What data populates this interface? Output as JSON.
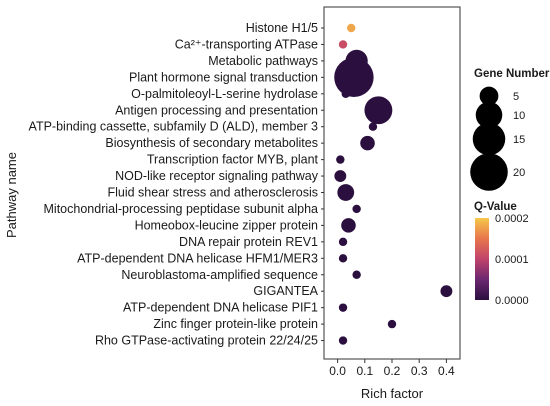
{
  "chart_data": {
    "type": "scatter",
    "xlabel": "Rich factor",
    "ylabel": "Pathway name",
    "xlim": [
      -0.05,
      0.45
    ],
    "x_ticks": [
      "0.0",
      "0.1",
      "0.2",
      "0.3",
      "0.4"
    ],
    "x_tick_values": [
      0.0,
      0.1,
      0.2,
      0.3,
      0.4
    ],
    "grid": false,
    "categories": [
      "Histone H1/5",
      "Ca²⁺-transporting ATPase",
      "Metabolic pathways",
      "Plant hormone signal transduction",
      "O-palmitoleoyl-L-serine hydrolase",
      "Antigen processing and presentation",
      "ATP-binding cassette, subfamily D (ALD), member 3",
      "Biosynthesis of secondary metabolites",
      "Transcription factor MYB, plant",
      "NOD-like receptor signaling pathway",
      "Fluid shear stress and atherosclerosis",
      "Mitochondrial-processing peptidase subunit alpha",
      "Homeobox-leucine zipper protein",
      "DNA repair protein REV1",
      "ATP-dependent DNA helicase HFM1/MER3",
      "Neuroblastoma-amplified sequence",
      "GIGANTEA",
      "ATP-dependent DNA helicase PIF1",
      "Zinc finger protein-like protein",
      "Rho GTPase-activating protein 22/24/25"
    ],
    "points": [
      {
        "x": 0.05,
        "gene_number": 1,
        "q_value": 0.00018
      },
      {
        "x": 0.02,
        "gene_number": 1,
        "q_value": 0.00011
      },
      {
        "x": 0.07,
        "gene_number": 7,
        "q_value": 0.0
      },
      {
        "x": 0.06,
        "gene_number": 22,
        "q_value": 0.0
      },
      {
        "x": 0.03,
        "gene_number": 1,
        "q_value": 0.0
      },
      {
        "x": 0.15,
        "gene_number": 11,
        "q_value": 0.0
      },
      {
        "x": 0.13,
        "gene_number": 1,
        "q_value": 0.0
      },
      {
        "x": 0.11,
        "gene_number": 3,
        "q_value": 0.0
      },
      {
        "x": 0.01,
        "gene_number": 1,
        "q_value": 0.0
      },
      {
        "x": 0.01,
        "gene_number": 2,
        "q_value": 0.0
      },
      {
        "x": 0.03,
        "gene_number": 4,
        "q_value": 0.0
      },
      {
        "x": 0.07,
        "gene_number": 1,
        "q_value": 0.0
      },
      {
        "x": 0.04,
        "gene_number": 3,
        "q_value": 0.0
      },
      {
        "x": 0.02,
        "gene_number": 1,
        "q_value": 0.0
      },
      {
        "x": 0.02,
        "gene_number": 1,
        "q_value": 0.0
      },
      {
        "x": 0.07,
        "gene_number": 1,
        "q_value": 0.0
      },
      {
        "x": 0.4,
        "gene_number": 2,
        "q_value": 0.0
      },
      {
        "x": 0.02,
        "gene_number": 1,
        "q_value": 0.0
      },
      {
        "x": 0.2,
        "gene_number": 1,
        "q_value": 0.0
      },
      {
        "x": 0.02,
        "gene_number": 1,
        "q_value": 0.0
      }
    ],
    "size_legend": {
      "title": "Gene Number",
      "values": [
        5,
        10,
        15,
        20
      ],
      "labels": [
        "5",
        "10",
        "15",
        "20"
      ]
    },
    "color_legend": {
      "title": "Q-Value",
      "range": [
        0.0,
        0.0002
      ],
      "ticks": [
        "0.0002",
        "0.0001",
        "0.0000"
      ],
      "tick_values": [
        0.0002,
        0.0001,
        0.0
      ],
      "colors": [
        "#2a0f3f",
        "#6b2770",
        "#c0436a",
        "#e8764c",
        "#f6c84a"
      ]
    },
    "legend_position": "right"
  }
}
